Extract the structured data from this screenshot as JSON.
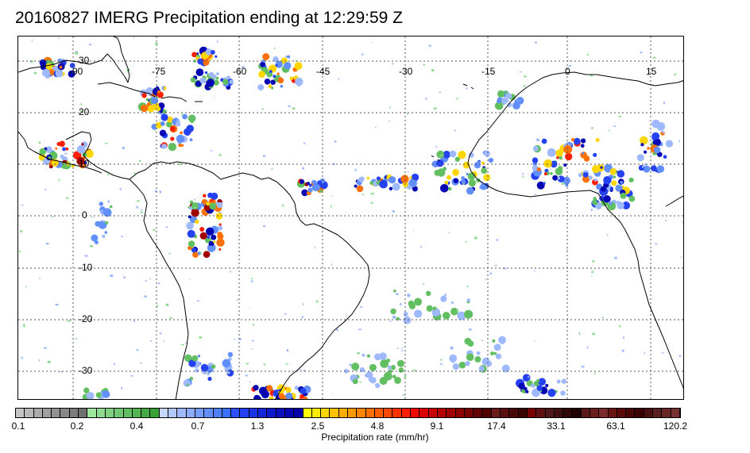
{
  "title": "20160827 IMERG Precipitation ending at 12:29:59 Z",
  "map": {
    "lat_labels": [
      "30",
      "20",
      "10",
      "0",
      "-10",
      "-20",
      "-30"
    ],
    "lon_labels": [
      "-90",
      "-75",
      "-60",
      "-45",
      "-30",
      "-15",
      "0",
      "15"
    ],
    "coastline_color": "#000000",
    "gridline_color": "#555555"
  },
  "colorbar": {
    "label": "Precipitation rate (mm/hr)",
    "tick_labels": [
      "0.1",
      "0.2",
      "0.4",
      "0.7",
      "1.3",
      "2.5",
      "4.8",
      "9.1",
      "17.4",
      "33.1",
      "63.1",
      "120.2"
    ],
    "colors": [
      "#c4c4c4",
      "#b8b8b8",
      "#ababab",
      "#9f9f9f",
      "#939393",
      "#878787",
      "#7b7b7b",
      "#6f6f6f",
      "#9ee59e",
      "#8fdb8f",
      "#7fd27f",
      "#70c870",
      "#61bf61",
      "#52b552",
      "#44ab44",
      "#36a236",
      "#c6d6ff",
      "#b2c8ff",
      "#9eb9ff",
      "#8aabff",
      "#769dff",
      "#628fff",
      "#4e80ff",
      "#3a72ff",
      "#2b4eff",
      "#2441f2",
      "#1c34e6",
      "#1527d9",
      "#0e1acc",
      "#0a12bf",
      "#0508b2",
      "#0000a6",
      "#ffff00",
      "#ffeb00",
      "#ffd600",
      "#ffc200",
      "#ffad00",
      "#ff9900",
      "#ff8500",
      "#ff7000",
      "#ff5c00",
      "#ff4700",
      "#ff3300",
      "#ff1f00",
      "#f00a00",
      "#dc0000",
      "#c80000",
      "#b40000",
      "#a00000",
      "#8c0000",
      "#780000",
      "#640000",
      "#500000",
      "#6b1a1a",
      "#5a1010",
      "#4a0808",
      "#3c0000",
      "#780000",
      "#601010",
      "#501818",
      "#401010",
      "#300808",
      "#200000",
      "#5a1a1a",
      "#6b2020",
      "#7a2a2a",
      "#6a1515",
      "#5a0a0a",
      "#4a0505",
      "#3a0000",
      "#481010",
      "#582020",
      "#682828",
      "#783030"
    ]
  }
}
